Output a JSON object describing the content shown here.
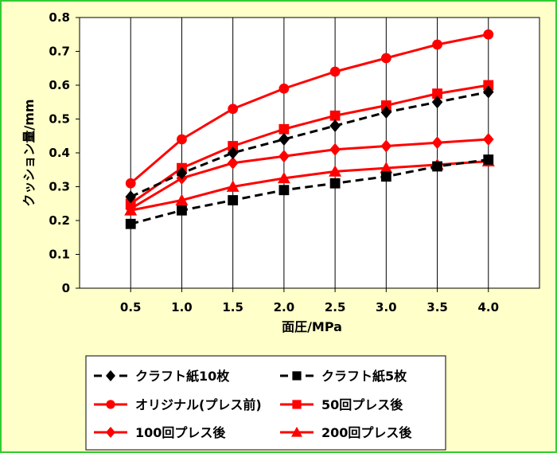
{
  "chart_data": {
    "type": "line",
    "title": "",
    "xlabel": "面圧/MPa",
    "ylabel": "クッション量/mm",
    "x": [
      0.5,
      1.0,
      1.5,
      2.0,
      2.5,
      3.0,
      3.5,
      4.0
    ],
    "x_tick_labels": [
      "0.5",
      "1.0",
      "1.5",
      "2.0",
      "2.5",
      "3.0",
      "3.5",
      "4.0"
    ],
    "ylim": [
      0,
      0.8
    ],
    "y_ticks": [
      0,
      0.1,
      0.2,
      0.3,
      0.4,
      0.5,
      0.6,
      0.7,
      0.8
    ],
    "y_tick_labels": [
      "0",
      "0.1",
      "0.2",
      "0.3",
      "0.4",
      "0.5",
      "0.6",
      "0.7",
      "0.8"
    ],
    "grid": "vertical",
    "legend_position": "bottom",
    "series": [
      {
        "name": "クラフト紙10枚",
        "values": [
          0.27,
          0.34,
          0.4,
          0.44,
          0.48,
          0.52,
          0.55,
          0.58
        ],
        "color": "#000000",
        "dash": "dashed",
        "marker": "diamond"
      },
      {
        "name": "クラフト紙5枚",
        "values": [
          0.19,
          0.23,
          0.26,
          0.29,
          0.31,
          0.33,
          0.36,
          0.38
        ],
        "color": "#000000",
        "dash": "dashed",
        "marker": "square"
      },
      {
        "name": "オリジナル(プレス前)",
        "values": [
          0.31,
          0.44,
          0.53,
          0.59,
          0.64,
          0.68,
          0.72,
          0.75
        ],
        "color": "#FF0000",
        "dash": "solid",
        "marker": "circle"
      },
      {
        "name": "50回プレス後",
        "values": [
          0.25,
          0.355,
          0.42,
          0.47,
          0.51,
          0.54,
          0.575,
          0.6
        ],
        "color": "#FF0000",
        "dash": "solid",
        "marker": "square"
      },
      {
        "name": "100回プレス後",
        "values": [
          0.235,
          0.325,
          0.37,
          0.39,
          0.41,
          0.42,
          0.43,
          0.44
        ],
        "color": "#FF0000",
        "dash": "solid",
        "marker": "diamond"
      },
      {
        "name": "200回プレス後",
        "values": [
          0.23,
          0.26,
          0.3,
          0.325,
          0.345,
          0.355,
          0.365,
          0.375
        ],
        "color": "#FF0000",
        "dash": "solid",
        "marker": "triangle"
      }
    ]
  }
}
